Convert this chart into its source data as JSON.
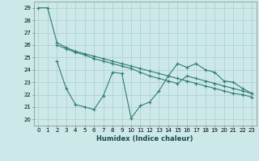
{
  "line1_x": [
    0,
    1,
    2,
    3,
    4,
    5,
    6,
    7,
    8,
    9,
    10,
    11,
    12,
    13,
    14,
    15,
    16,
    17,
    18,
    19,
    20,
    21,
    22,
    23
  ],
  "line1_y": [
    29,
    29,
    26.2,
    25.8,
    25.5,
    25.3,
    25.1,
    24.9,
    24.7,
    24.5,
    24.3,
    24.1,
    23.9,
    23.7,
    23.5,
    23.3,
    23.1,
    22.9,
    22.7,
    22.5,
    22.3,
    22.1,
    22.0,
    21.8
  ],
  "line2_x": [
    2,
    3,
    4,
    5,
    6,
    7,
    8,
    9,
    10,
    11,
    12,
    13,
    14,
    15,
    16,
    17,
    18,
    19,
    20,
    21,
    22,
    23
  ],
  "line2_y": [
    24.7,
    22.5,
    21.2,
    21.0,
    20.8,
    21.9,
    23.8,
    23.7,
    20.1,
    21.1,
    21.4,
    22.3,
    23.5,
    24.5,
    24.2,
    24.5,
    24.0,
    23.8,
    23.1,
    23.0,
    22.5,
    22.1
  ],
  "line3_x": [
    2,
    3,
    4,
    5,
    6,
    7,
    8,
    9,
    10,
    11,
    12,
    13,
    14,
    15,
    16,
    17,
    18,
    19,
    20,
    21,
    22,
    23
  ],
  "line3_y": [
    26.0,
    25.7,
    25.4,
    25.2,
    24.9,
    24.7,
    24.5,
    24.3,
    24.1,
    23.8,
    23.5,
    23.3,
    23.1,
    22.9,
    23.5,
    23.3,
    23.1,
    22.9,
    22.7,
    22.5,
    22.3,
    22.1
  ],
  "line_color": "#2e7d6e",
  "bg_color": "#cde8e8",
  "grid_color": "#aacece",
  "xlabel": "Humidex (Indice chaleur)",
  "ylim": [
    19.5,
    29.5
  ],
  "xlim": [
    -0.5,
    23.5
  ],
  "yticks": [
    20,
    21,
    22,
    23,
    24,
    25,
    26,
    27,
    28,
    29
  ],
  "xticks": [
    0,
    1,
    2,
    3,
    4,
    5,
    6,
    7,
    8,
    9,
    10,
    11,
    12,
    13,
    14,
    15,
    16,
    17,
    18,
    19,
    20,
    21,
    22,
    23
  ],
  "tick_fontsize": 5.0,
  "xlabel_fontsize": 6.0
}
